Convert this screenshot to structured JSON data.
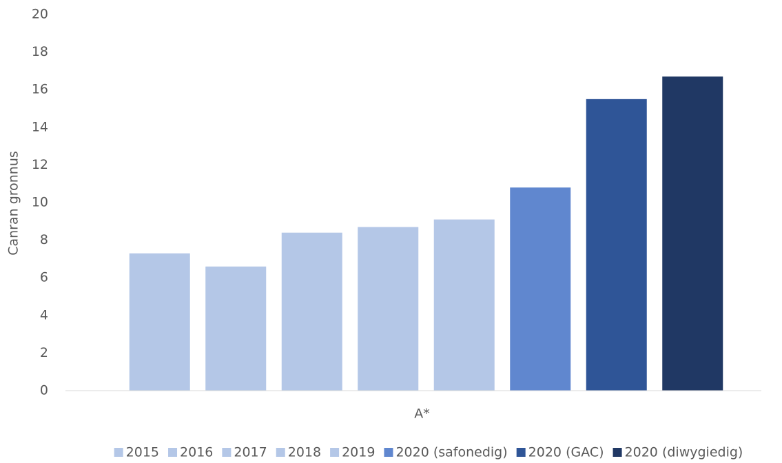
{
  "chart_data": {
    "type": "bar",
    "y_label": "Canran gronnus",
    "categories": [
      "A*"
    ],
    "series": [
      {
        "name": "2015",
        "color": "#b4c7e7",
        "values": [
          7.3
        ]
      },
      {
        "name": "2016",
        "color": "#b4c7e7",
        "values": [
          6.6
        ]
      },
      {
        "name": "2017",
        "color": "#b4c7e7",
        "values": [
          8.4
        ]
      },
      {
        "name": "2018",
        "color": "#b4c7e7",
        "values": [
          8.7
        ]
      },
      {
        "name": "2019",
        "color": "#b4c7e7",
        "values": [
          9.1
        ]
      },
      {
        "name": "2020 (safonedig)",
        "color": "#6087cf",
        "values": [
          10.8
        ]
      },
      {
        "name": "2020 (GAC)",
        "color": "#2f5597",
        "values": [
          15.5
        ]
      },
      {
        "name": "2020 (diwygiedig)",
        "color": "#203864",
        "values": [
          16.7
        ]
      }
    ],
    "ylim": [
      0,
      20
    ],
    "yticks": [
      0,
      2,
      4,
      6,
      8,
      10,
      12,
      14,
      16,
      18,
      20
    ],
    "grid": false,
    "legend": "bottom"
  }
}
